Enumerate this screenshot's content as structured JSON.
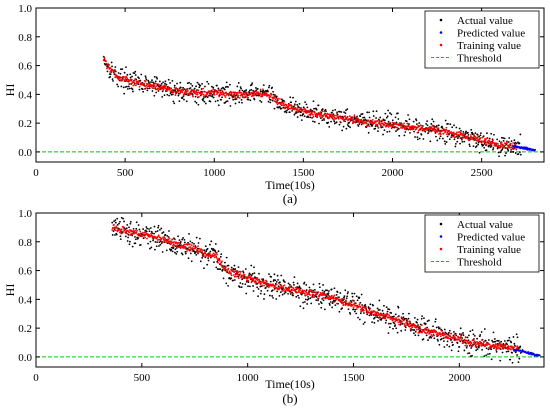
{
  "chart_data": [
    {
      "type": "scatter",
      "panel_label": "(a)",
      "xlabel": "Time(10s)",
      "ylabel": "HI",
      "xlim": [
        0,
        2850
      ],
      "ylim": [
        -0.07,
        1.0
      ],
      "x_ticks": [
        0,
        500,
        1000,
        1500,
        2000,
        2500
      ],
      "y_ticks": [
        0.0,
        0.2,
        0.4,
        0.6,
        0.8,
        1.0
      ],
      "x_tick_labels": [
        "0",
        "500",
        "1000",
        "1500",
        "2000",
        "2500"
      ],
      "y_tick_labels": [
        "0.0",
        "0.2",
        "0.4",
        "0.6",
        "0.8",
        "1.0"
      ],
      "grid": false,
      "legend_position": "top-right",
      "series": [
        {
          "name": "Actual value",
          "color": "#000000",
          "marker": "dot",
          "x": [
            380,
            400,
            450,
            500,
            600,
            700,
            800,
            900,
            1000,
            1100,
            1200,
            1250,
            1300,
            1350,
            1400,
            1500,
            1600,
            1700,
            1800,
            1900,
            2000,
            2100,
            2200,
            2300,
            2400,
            2500,
            2600,
            2700
          ],
          "y": [
            0.66,
            0.6,
            0.53,
            0.5,
            0.47,
            0.45,
            0.42,
            0.41,
            0.41,
            0.4,
            0.4,
            0.41,
            0.4,
            0.36,
            0.32,
            0.28,
            0.26,
            0.24,
            0.22,
            0.2,
            0.19,
            0.17,
            0.16,
            0.14,
            0.11,
            0.08,
            0.05,
            0.03
          ],
          "spread": 0.045,
          "range": [
            380,
            2720
          ]
        },
        {
          "name": "Predicted value",
          "color": "#0000ff",
          "marker": "dot",
          "x": [
            2680,
            2720,
            2760,
            2800
          ],
          "y": [
            0.04,
            0.03,
            0.02,
            0.01
          ],
          "range": [
            2680,
            2800
          ]
        },
        {
          "name": "Training value",
          "color": "#ff0000",
          "marker": "dot",
          "x": [
            380,
            400,
            450,
            500,
            600,
            700,
            800,
            900,
            1000,
            1100,
            1200,
            1250,
            1300,
            1350,
            1400,
            1500,
            1600,
            1700,
            1800,
            1900,
            2000,
            2100,
            2200,
            2300,
            2400,
            2500,
            2600,
            2700
          ],
          "y": [
            0.66,
            0.6,
            0.53,
            0.5,
            0.47,
            0.45,
            0.42,
            0.41,
            0.41,
            0.4,
            0.4,
            0.41,
            0.4,
            0.36,
            0.32,
            0.28,
            0.26,
            0.24,
            0.22,
            0.2,
            0.19,
            0.17,
            0.16,
            0.14,
            0.11,
            0.08,
            0.05,
            0.03
          ],
          "spread": 0.015,
          "range": [
            380,
            2700
          ]
        },
        {
          "name": "Threshold",
          "color": "#00c800",
          "style": "dashed",
          "y": 0.0
        }
      ]
    },
    {
      "type": "scatter",
      "panel_label": "(b)",
      "xlabel": "Time(10s)",
      "ylabel": "HI",
      "xlim": [
        0,
        2400
      ],
      "ylim": [
        -0.07,
        1.0
      ],
      "x_ticks": [
        0,
        500,
        1000,
        1500,
        2000
      ],
      "y_ticks": [
        0.0,
        0.2,
        0.4,
        0.6,
        0.8,
        1.0
      ],
      "x_tick_labels": [
        "0",
        "500",
        "1000",
        "1500",
        "2000"
      ],
      "y_tick_labels": [
        "0.0",
        "0.2",
        "0.4",
        "0.6",
        "0.8",
        "1.0"
      ],
      "grid": false,
      "legend_position": "top-right",
      "series": [
        {
          "name": "Actual value",
          "color": "#000000",
          "marker": "dot",
          "x": [
            360,
            400,
            500,
            600,
            700,
            750,
            800,
            850,
            900,
            1000,
            1100,
            1200,
            1300,
            1400,
            1500,
            1600,
            1700,
            1800,
            1900,
            2000,
            2100,
            2200,
            2280
          ],
          "y": [
            0.9,
            0.88,
            0.85,
            0.82,
            0.77,
            0.75,
            0.72,
            0.7,
            0.6,
            0.55,
            0.5,
            0.47,
            0.44,
            0.41,
            0.36,
            0.3,
            0.26,
            0.2,
            0.16,
            0.12,
            0.09,
            0.07,
            0.05
          ],
          "spread": 0.055,
          "range": [
            360,
            2290
          ]
        },
        {
          "name": "Predicted value",
          "color": "#0000ff",
          "marker": "dot",
          "x": [
            2260,
            2300,
            2340,
            2380
          ],
          "y": [
            0.05,
            0.04,
            0.02,
            0.01
          ],
          "range": [
            2260,
            2380
          ]
        },
        {
          "name": "Training value",
          "color": "#ff0000",
          "marker": "dot",
          "x": [
            360,
            400,
            500,
            600,
            700,
            750,
            800,
            850,
            900,
            1000,
            1100,
            1200,
            1300,
            1400,
            1500,
            1600,
            1700,
            1800,
            1900,
            2000,
            2100,
            2200,
            2280
          ],
          "y": [
            0.9,
            0.88,
            0.85,
            0.82,
            0.77,
            0.75,
            0.72,
            0.7,
            0.6,
            0.55,
            0.5,
            0.47,
            0.44,
            0.41,
            0.36,
            0.3,
            0.26,
            0.2,
            0.16,
            0.12,
            0.09,
            0.07,
            0.05
          ],
          "spread": 0.015,
          "range": [
            360,
            2280
          ]
        },
        {
          "name": "Threshold",
          "color": "#00c800",
          "style": "dashed",
          "y": 0.0
        }
      ]
    }
  ]
}
